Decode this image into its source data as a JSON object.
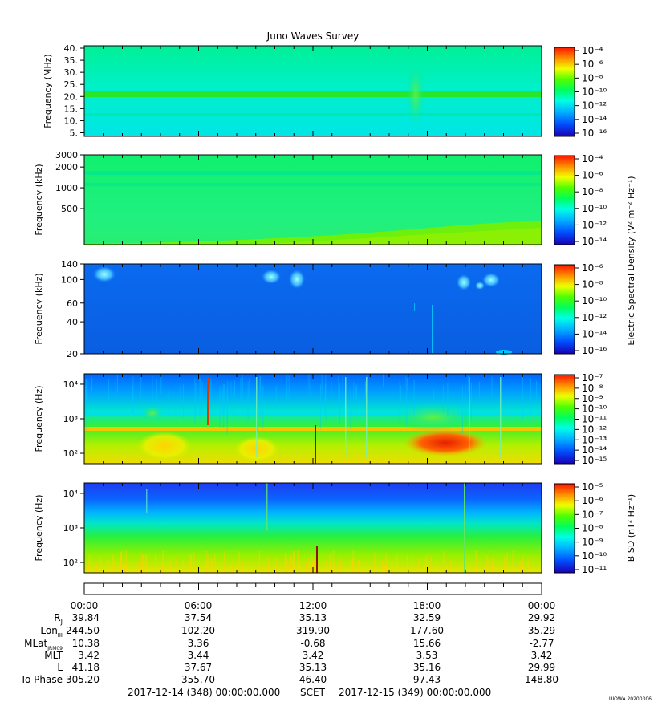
{
  "title": "Juno Waves Survey",
  "watermark": "UIOWA 20200306",
  "colorbar_labels": {
    "electric": "Electric Spectral Density (V² m⁻² Hz⁻¹)",
    "magnetic": "B SD (nT² Hz⁻¹)"
  },
  "panels": [
    {
      "ylabel": "Frequency (MHz)",
      "yticks": [
        "40.",
        "35.",
        "30.",
        "25.",
        "20.",
        "15.",
        "10.",
        "5."
      ],
      "cbar_ticks": [
        "10⁻⁴",
        "10⁻⁶",
        "10⁻⁸",
        "10⁻¹⁰",
        "10⁻¹²",
        "10⁻¹⁴",
        "10⁻¹⁶"
      ]
    },
    {
      "ylabel": "Frequency (kHz)",
      "yticks": [
        "3000",
        "2000",
        "1000",
        "500"
      ],
      "cbar_ticks": [
        "10⁻⁴",
        "10⁻⁶",
        "10⁻⁸",
        "10⁻¹⁰",
        "10⁻¹²",
        "10⁻¹⁴"
      ]
    },
    {
      "ylabel": "Frequency (kHz)",
      "yticks": [
        "140",
        "100",
        "60",
        "40",
        "20"
      ],
      "cbar_ticks": [
        "10⁻⁶",
        "10⁻⁸",
        "10⁻¹⁰",
        "10⁻¹²",
        "10⁻¹⁴",
        "10⁻¹⁶"
      ]
    },
    {
      "ylabel": "Frequency (Hz)",
      "yticks": [
        "10⁴",
        "10³",
        "10²"
      ],
      "cbar_ticks": [
        "10⁻⁷",
        "10⁻⁸",
        "10⁻⁹",
        "10⁻¹⁰",
        "10⁻¹¹",
        "10⁻¹²",
        "10⁻¹³",
        "10⁻¹⁴",
        "10⁻¹⁵"
      ]
    },
    {
      "ylabel": "Frequency (Hz)",
      "yticks": [
        "10⁴",
        "10³",
        "10²"
      ],
      "cbar_ticks": [
        "10⁻⁵",
        "10⁻⁶",
        "10⁻⁷",
        "10⁻⁸",
        "10⁻⁹",
        "10⁻¹⁰",
        "10⁻¹¹"
      ]
    }
  ],
  "ephemeris": {
    "times": [
      "00:00",
      "06:00",
      "12:00",
      "18:00",
      "00:00"
    ],
    "rows": [
      {
        "label": "RJ",
        "values": [
          "39.84",
          "37.54",
          "35.13",
          "32.59",
          "29.92"
        ]
      },
      {
        "label": "LonIII",
        "values": [
          "244.50",
          "102.20",
          "319.90",
          "177.60",
          "35.29"
        ]
      },
      {
        "label": "MLatJRM09",
        "values": [
          "10.38",
          "3.36",
          "-0.68",
          "15.66",
          "-2.77"
        ]
      },
      {
        "label": "MLT",
        "values": [
          "3.42",
          "3.44",
          "3.42",
          "3.53",
          "3.42"
        ]
      },
      {
        "label": "L",
        "values": [
          "41.18",
          "37.67",
          "35.13",
          "35.16",
          "29.99"
        ]
      },
      {
        "label": "Io Phase",
        "values": [
          "305.20",
          "355.70",
          "46.40",
          "97.43",
          "148.80"
        ]
      }
    ]
  },
  "footer": {
    "start": "2017-12-14 (348) 00:00:00.000",
    "frame": "SCET",
    "end": "2017-12-15 (349) 00:00:00.000"
  },
  "chart_data": {
    "type": "heatmap",
    "title": "Juno Waves Survey",
    "x_range": [
      "2017-12-14 00:00",
      "2017-12-15 00:00"
    ],
    "x_tick_labels": [
      "00:00",
      "06:00",
      "12:00",
      "18:00",
      "00:00"
    ],
    "colormap": "rainbow (blue = low, red = high)",
    "panels": [
      {
        "ylabel": "Frequency (MHz)",
        "ylim": [
          3.5,
          41
        ],
        "yscale": "linear",
        "zlim": [
          "1e-17",
          "1e-4"
        ],
        "background": "cyan-green",
        "features": [
          "constant band near 21 MHz",
          "burst near 17:30 spanning 5-35 MHz"
        ]
      },
      {
        "ylabel": "Frequency (kHz)",
        "ylim": [
          150,
          3000
        ],
        "yscale": "log",
        "zlim": [
          "1e-15",
          "1e-4"
        ],
        "background": "green",
        "features": [
          "bands near 1700 kHz and 1150 kHz",
          "rising lower-frequency emission after 12:00"
        ]
      },
      {
        "ylabel": "Frequency (kHz)",
        "ylim": [
          20,
          140
        ],
        "yscale": "log",
        "zlim": [
          "1e-17",
          "1e-6"
        ],
        "background": "blue",
        "features": [
          "patches near 120 kHz at 01:00, 09:30, 18:30-20:00"
        ]
      },
      {
        "ylabel": "Frequency (Hz)",
        "ylim": [
          50,
          20000
        ],
        "yscale": "log",
        "zlim": [
          "1e-15",
          "1e-7"
        ],
        "background": "blue above 1 kHz, green/yellow below",
        "features": [
          "line near 600 Hz",
          "intense 100-300 Hz emission 17:30-21:00",
          "impulsive spikes near 06:20 and 12:00"
        ]
      },
      {
        "ylabel": "Frequency (Hz)",
        "ylim": [
          50,
          20000
        ],
        "yscale": "log",
        "zlim": [
          "1e-11",
          "1e-5"
        ],
        "background": "blue above 3 kHz, green/yellow below",
        "features": [
          "spikes near 12:00 and 20:00"
        ]
      }
    ]
  }
}
